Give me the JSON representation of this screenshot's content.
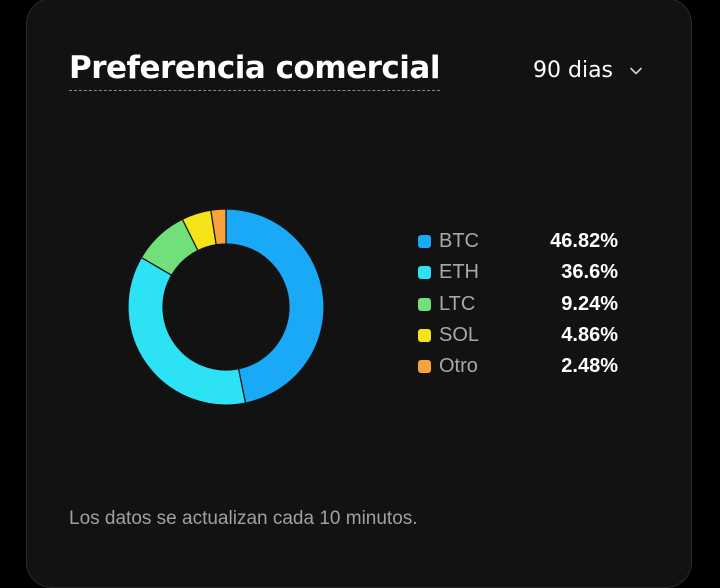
{
  "header": {
    "title": "Preferencia comercial",
    "period_select": {
      "label": "90 dias",
      "icon": "chevron-down-icon"
    }
  },
  "chart_data": {
    "type": "pie",
    "variant": "donut",
    "title": "",
    "categories": [
      "BTC",
      "ETH",
      "LTC",
      "SOL",
      "Otro"
    ],
    "values": [
      46.82,
      36.6,
      9.24,
      4.86,
      2.48
    ],
    "labels": [
      "46.82%",
      "36.6%",
      "9.24%",
      "4.86%",
      "2.48%"
    ],
    "colors": [
      "#1aa9f7",
      "#2de2f4",
      "#72e07a",
      "#f3e317",
      "#f6a33b"
    ],
    "legend_position": "right"
  },
  "footer": {
    "note": "Los datos se actualizan cada 10 minutos."
  }
}
